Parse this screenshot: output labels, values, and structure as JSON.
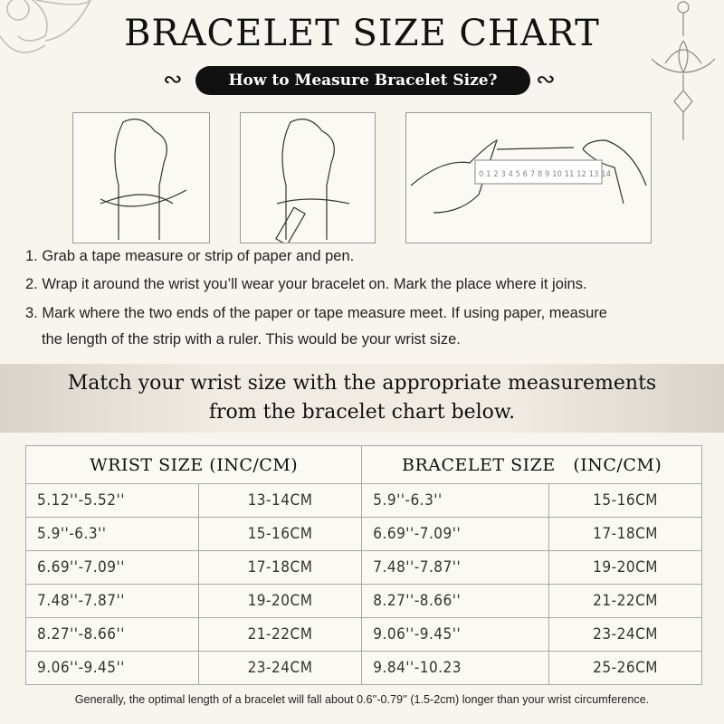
{
  "title": "BRACELET SIZE CHART",
  "subtitle": "How to Measure Bracelet Size?",
  "steps": [
    "1. Grab a tape measure or strip of paper and pen.",
    "2. Wrap it around the wrist you’ll wear your bracelet on. Mark the place where it joins.",
    "3. Mark where the two ends of the paper or tape measure meet. If using paper, measure",
    "the length of the strip with a ruler. This would be your wrist size."
  ],
  "band": {
    "line1": "Match your wrist size with the appropriate measurements",
    "line2": "from the bracelet chart below."
  },
  "table": {
    "headers": [
      "WRIST SIZE (INC/CM)",
      "BRACELET SIZE   (INC/CM)"
    ],
    "rows": [
      [
        "5.12''-5.52''",
        "13-14CM",
        "5.9''-6.3''",
        "15-16CM"
      ],
      [
        "5.9''-6.3''",
        "15-16CM",
        "6.69''-7.09''",
        "17-18CM"
      ],
      [
        "6.69''-7.09''",
        "17-18CM",
        "7.48''-7.87''",
        "19-20CM"
      ],
      [
        "7.48''-7.87''",
        "19-20CM",
        "8.27''-8.66''",
        "21-22CM"
      ],
      [
        "8.27''-8.66''",
        "21-22CM",
        "9.06''-9.45''",
        "23-24CM"
      ],
      [
        "9.06''-9.45''",
        "23-24CM",
        "9.84''-10.23",
        "25-26CM"
      ]
    ]
  },
  "footer": "Generally, the optimal length of a bracelet will fall about 0.6''-0.79'' (1.5-2cm) longer than your wrist circumference."
}
